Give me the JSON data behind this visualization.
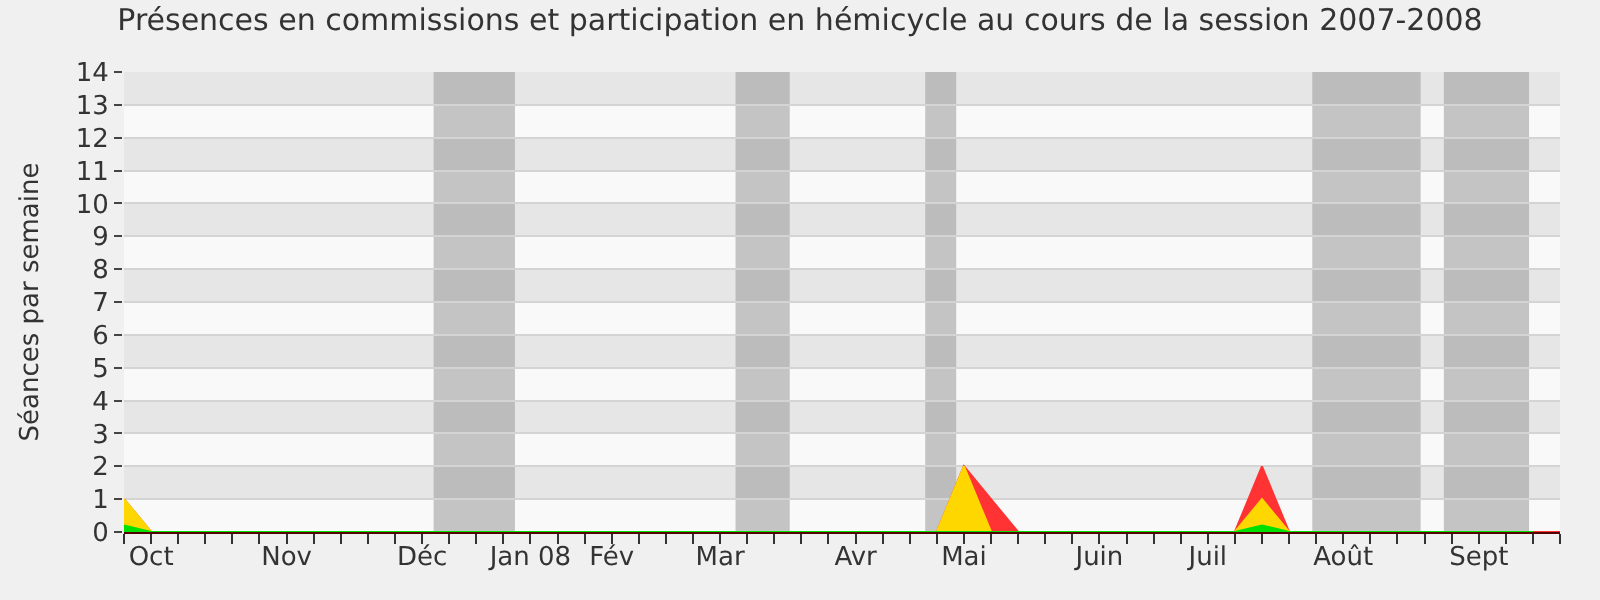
{
  "chart_data": {
    "type": "area",
    "title": "Présences en commissions et participation en hémicycle au cours de la session 2007-2008",
    "ylabel": "Séances par semaine",
    "x": [
      "2007-10-01",
      "2007-10-08",
      "2007-10-15",
      "2007-10-22",
      "2007-10-29",
      "2007-11-05",
      "2007-11-12",
      "2007-11-19",
      "2007-11-26",
      "2007-12-03",
      "2007-12-10",
      "2007-12-17",
      "2007-12-24",
      "2007-12-31",
      "2008-01-07",
      "2008-01-14",
      "2008-01-21",
      "2008-01-28",
      "2008-02-04",
      "2008-02-11",
      "2008-02-18",
      "2008-02-25",
      "2008-03-03",
      "2008-03-10",
      "2008-03-17",
      "2008-03-24",
      "2008-03-31",
      "2008-04-07",
      "2008-04-14",
      "2008-04-21",
      "2008-04-28",
      "2008-05-05",
      "2008-05-12",
      "2008-05-19",
      "2008-05-26",
      "2008-06-02",
      "2008-06-09",
      "2008-06-16",
      "2008-06-23",
      "2008-06-30",
      "2008-07-07",
      "2008-07-14",
      "2008-07-21",
      "2008-07-28",
      "2008-08-04",
      "2008-08-11",
      "2008-08-18",
      "2008-08-25",
      "2008-09-01",
      "2008-09-08",
      "2008-09-15",
      "2008-09-22",
      "2008-09-29",
      "2008-10-06"
    ],
    "series": [
      {
        "color": "#ff3333",
        "values": [
          1,
          0,
          0,
          0,
          0,
          0,
          0,
          0,
          0,
          0,
          0,
          0,
          0,
          0,
          0,
          0,
          0,
          0,
          0,
          0,
          0,
          0,
          0,
          0,
          0,
          0,
          0,
          0,
          0,
          0,
          0,
          2,
          1,
          0,
          0,
          0,
          0,
          0,
          0,
          0,
          0,
          0,
          2,
          0,
          0,
          0,
          0,
          0,
          0,
          0,
          0,
          0,
          0,
          0
        ]
      },
      {
        "color": "#ffd700",
        "values": [
          1,
          0,
          0,
          0,
          0,
          0,
          0,
          0,
          0,
          0,
          0,
          0,
          0,
          0,
          0,
          0,
          0,
          0,
          0,
          0,
          0,
          0,
          0,
          0,
          0,
          0,
          0,
          0,
          0,
          0,
          0,
          2,
          0,
          0,
          0,
          0,
          0,
          0,
          0,
          0,
          0,
          0,
          1,
          0,
          0,
          0,
          0,
          0,
          0,
          0,
          0,
          0,
          0,
          null
        ]
      },
      {
        "color": "#00e000",
        "values": [
          0.2,
          0,
          0,
          0,
          0,
          0,
          0,
          0,
          0,
          0,
          0,
          0,
          0,
          0,
          0,
          0,
          0,
          0,
          0,
          0,
          0,
          0,
          0,
          0,
          0,
          0,
          0,
          0,
          0,
          0,
          0,
          0,
          0,
          0,
          0,
          0,
          0,
          0,
          0,
          0,
          0,
          0,
          0.2,
          0,
          0,
          0,
          0,
          0,
          0,
          0,
          0,
          0,
          0,
          null
        ]
      }
    ],
    "xlim": [
      "2007-10-01",
      "2008-10-06"
    ],
    "xticks": [
      {
        "value": "2007-10-08",
        "label": "Oct"
      },
      {
        "value": "2007-11-12",
        "label": "Nov"
      },
      {
        "value": "2007-12-17",
        "label": "Déc"
      },
      {
        "value": "2008-01-14",
        "label": "Jan 08"
      },
      {
        "value": "2008-02-04",
        "label": "Fév"
      },
      {
        "value": "2008-03-03",
        "label": "Mar"
      },
      {
        "value": "2008-04-07",
        "label": "Avr"
      },
      {
        "value": "2008-05-05",
        "label": "Mai"
      },
      {
        "value": "2008-06-09",
        "label": "Juin"
      },
      {
        "value": "2008-07-07",
        "label": "Juil"
      },
      {
        "value": "2008-08-11",
        "label": "Août"
      },
      {
        "value": "2008-09-15",
        "label": "Sept"
      },
      {
        "value": "2007-10-01",
        "label": null
      },
      {
        "value": "2007-10-08",
        "label": null
      },
      {
        "value": "2007-10-15",
        "label": null
      },
      {
        "value": "2007-10-22",
        "label": null
      },
      {
        "value": "2007-10-29",
        "label": null
      },
      {
        "value": "2007-11-05",
        "label": null
      },
      {
        "value": "2007-11-12",
        "label": null
      },
      {
        "value": "2007-11-19",
        "label": null
      },
      {
        "value": "2007-11-26",
        "label": null
      },
      {
        "value": "2007-12-03",
        "label": null
      },
      {
        "value": "2007-12-10",
        "label": null
      },
      {
        "value": "2007-12-17",
        "label": null
      },
      {
        "value": "2007-12-24",
        "label": null
      },
      {
        "value": "2007-12-31",
        "label": null
      },
      {
        "value": "2008-01-07",
        "label": null
      },
      {
        "value": "2008-01-14",
        "label": null
      },
      {
        "value": "2008-01-21",
        "label": null
      },
      {
        "value": "2008-01-28",
        "label": null
      },
      {
        "value": "2008-02-04",
        "label": null
      },
      {
        "value": "2008-02-11",
        "label": null
      },
      {
        "value": "2008-02-18",
        "label": null
      },
      {
        "value": "2008-02-25",
        "label": null
      },
      {
        "value": "2008-03-03",
        "label": null
      },
      {
        "value": "2008-03-10",
        "label": null
      },
      {
        "value": "2008-03-17",
        "label": null
      },
      {
        "value": "2008-03-24",
        "label": null
      },
      {
        "value": "2008-03-31",
        "label": null
      },
      {
        "value": "2008-04-07",
        "label": null
      },
      {
        "value": "2008-04-14",
        "label": null
      },
      {
        "value": "2008-04-21",
        "label": null
      },
      {
        "value": "2008-04-28",
        "label": null
      },
      {
        "value": "2008-05-05",
        "label": null
      },
      {
        "value": "2008-05-12",
        "label": null
      },
      {
        "value": "2008-05-19",
        "label": null
      },
      {
        "value": "2008-05-26",
        "label": null
      },
      {
        "value": "2008-06-02",
        "label": null
      },
      {
        "value": "2008-06-09",
        "label": null
      },
      {
        "value": "2008-06-16",
        "label": null
      },
      {
        "value": "2008-06-23",
        "label": null
      },
      {
        "value": "2008-06-30",
        "label": null
      },
      {
        "value": "2008-07-07",
        "label": null
      },
      {
        "value": "2008-07-14",
        "label": null
      },
      {
        "value": "2008-07-21",
        "label": null
      },
      {
        "value": "2008-07-28",
        "label": null
      },
      {
        "value": "2008-08-04",
        "label": null
      },
      {
        "value": "2008-08-11",
        "label": null
      },
      {
        "value": "2008-08-18",
        "label": null
      },
      {
        "value": "2008-08-25",
        "label": null
      },
      {
        "value": "2008-09-01",
        "label": null
      },
      {
        "value": "2008-09-08",
        "label": null
      },
      {
        "value": "2008-09-15",
        "label": null
      },
      {
        "value": "2008-09-22",
        "label": null
      },
      {
        "value": "2008-09-29",
        "label": null
      },
      {
        "value": "2008-10-06",
        "label": null
      }
    ],
    "ylim": [
      0,
      14
    ],
    "yticks": [
      0,
      1,
      2,
      3,
      4,
      5,
      6,
      7,
      8,
      9,
      10,
      11,
      12,
      13,
      14
    ],
    "grid": "y",
    "bands": [
      {
        "axis": "x",
        "from": "2007-12-20",
        "to": "2008-01-10",
        "color": "#a0a0a0"
      },
      {
        "axis": "x",
        "from": "2008-03-07",
        "to": "2008-03-21",
        "color": "#a0a0a0"
      },
      {
        "axis": "x",
        "from": "2008-04-25",
        "to": "2008-05-03",
        "color": "#a0a0a0"
      },
      {
        "axis": "x",
        "from": "2008-08-03",
        "to": "2008-08-31",
        "color": "#a0a0a0"
      },
      {
        "axis": "x",
        "from": "2008-09-06",
        "to": "2008-09-28",
        "color": "#a0a0a0"
      }
    ]
  }
}
